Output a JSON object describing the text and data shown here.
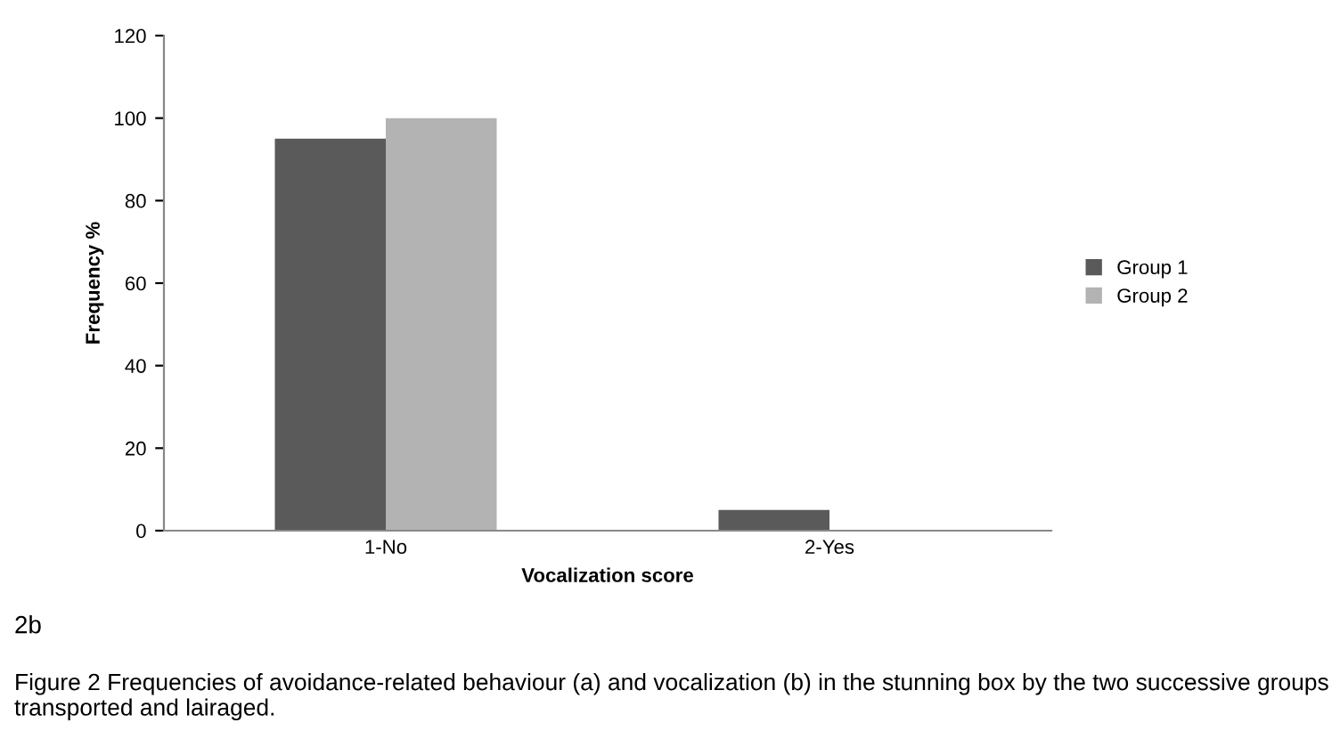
{
  "chart_data": {
    "type": "bar",
    "xlabel": "Vocalization score",
    "ylabel": "Frequency %",
    "categories": [
      "1-No",
      "2-Yes"
    ],
    "series": [
      {
        "name": "Group 1",
        "color": "#5a5a5a",
        "values": [
          95,
          5
        ]
      },
      {
        "name": "Group 2",
        "color": "#b3b3b3",
        "values": [
          100,
          0
        ]
      }
    ],
    "ylim": [
      0,
      120
    ],
    "yticks": [
      0,
      20,
      40,
      60,
      80,
      100,
      120
    ],
    "grid": false,
    "legend": "right",
    "annotations": [
      "2b",
      "Figure 2 Frequencies of avoidance-related behaviour (a) and vocalization (b) in the stunning box by the two successive groups transported and lairaged."
    ]
  }
}
